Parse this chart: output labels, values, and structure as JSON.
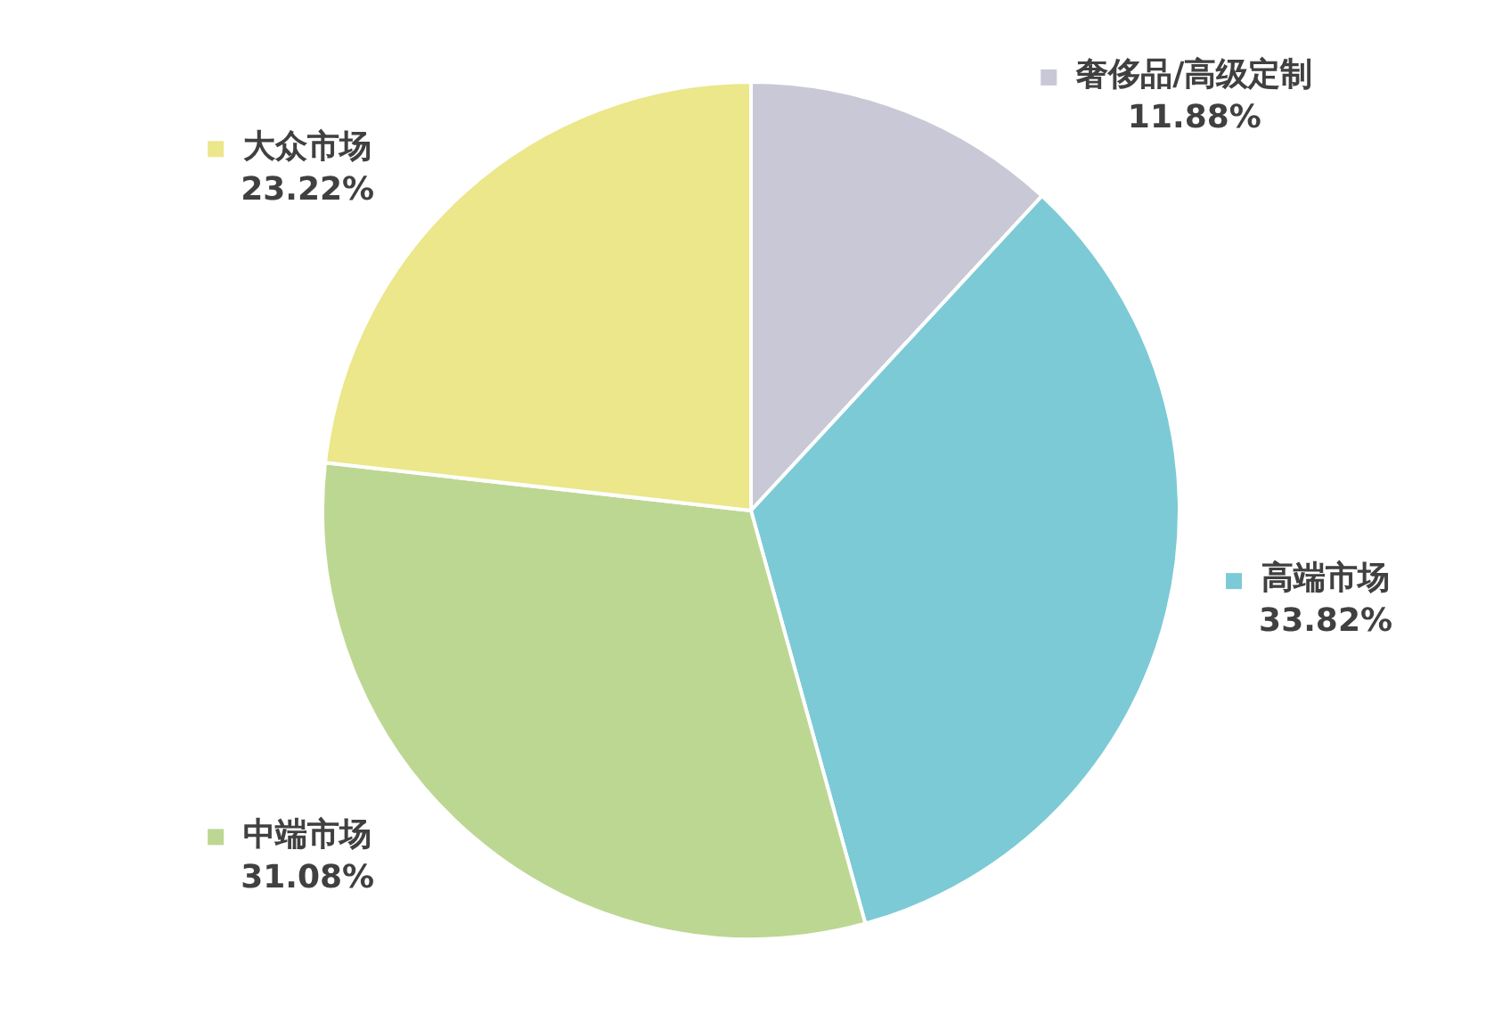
{
  "chart_data": {
    "type": "pie",
    "categories": [
      "奢侈品/高级定制",
      "高端市场",
      "中端市场",
      "大众市场"
    ],
    "values": [
      11.88,
      33.82,
      31.08,
      23.22
    ],
    "colors": [
      "#c9c8d6",
      "#7ccad5",
      "#bcd792",
      "#ebe78a"
    ],
    "value_labels": [
      "11.88%",
      "33.82%",
      "31.08%",
      "23.22%"
    ],
    "legend": "right"
  }
}
